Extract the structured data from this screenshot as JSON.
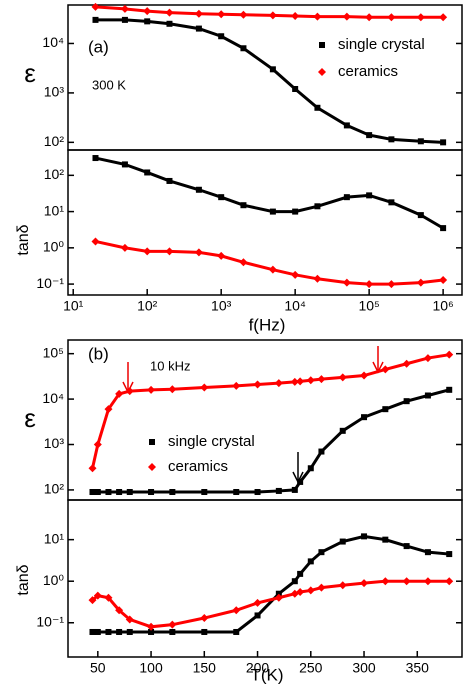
{
  "chart_data": [
    {
      "type": "line",
      "ylabel": "ε",
      "xscale": "log",
      "yscale": "log",
      "xlim": [
        8.5,
        1800000
      ],
      "ylim": [
        70,
        60000
      ],
      "yticks": [
        {
          "value": 100,
          "label": "10²"
        },
        {
          "value": 1000,
          "label": "10³"
        },
        {
          "value": 10000,
          "label": "10⁴"
        }
      ],
      "annotations": [
        "(a)",
        "300 K"
      ],
      "x": [
        20,
        50,
        100,
        200,
        500,
        1000,
        2000,
        5000,
        10000,
        20000,
        50000,
        100000,
        200000,
        500000,
        1000000
      ],
      "series": [
        {
          "name": "single crystal",
          "color": "#000000",
          "marker": "square",
          "values": [
            30000,
            30000,
            28000,
            25000,
            20000,
            14000,
            8000,
            3000,
            1200,
            500,
            220,
            140,
            115,
            105,
            100
          ]
        },
        {
          "name": "ceramics",
          "color": "#ff0000",
          "marker": "diamond",
          "values": [
            55000,
            50000,
            45000,
            42000,
            40000,
            39000,
            38000,
            37000,
            36000,
            35000,
            35000,
            34000,
            34000,
            34000,
            34000
          ]
        }
      ]
    },
    {
      "type": "line",
      "ylabel": "tanδ",
      "xlabel": "f(Hz)",
      "xscale": "log",
      "yscale": "log",
      "xlim": [
        8.5,
        1800000
      ],
      "ylim": [
        0.05,
        500
      ],
      "xticks": [
        {
          "value": 10,
          "label": "10¹"
        },
        {
          "value": 100,
          "label": "10²"
        },
        {
          "value": 1000,
          "label": "10³"
        },
        {
          "value": 10000,
          "label": "10⁴"
        },
        {
          "value": 100000,
          "label": "10⁵"
        },
        {
          "value": 1000000,
          "label": "10⁶"
        }
      ],
      "yticks": [
        {
          "value": 0.1,
          "label": "10⁻¹"
        },
        {
          "value": 1,
          "label": "10⁰"
        },
        {
          "value": 10,
          "label": "10¹"
        },
        {
          "value": 100,
          "label": "10²"
        }
      ],
      "x": [
        20,
        50,
        100,
        200,
        500,
        1000,
        2000,
        5000,
        10000,
        20000,
        50000,
        100000,
        200000,
        500000,
        1000000
      ],
      "series": [
        {
          "color": "#000000",
          "marker": "square",
          "values": [
            300,
            200,
            120,
            70,
            40,
            25,
            15,
            10,
            10,
            14,
            25,
            28,
            18,
            8,
            3.5
          ]
        },
        {
          "color": "#ff0000",
          "marker": "diamond",
          "values": [
            1.5,
            1.0,
            0.8,
            0.8,
            0.75,
            0.6,
            0.4,
            0.25,
            0.18,
            0.14,
            0.11,
            0.1,
            0.1,
            0.11,
            0.13
          ]
        }
      ]
    },
    {
      "type": "line",
      "ylabel": "ε",
      "xscale": "linear",
      "yscale": "log",
      "xlim": [
        22,
        392
      ],
      "ylim": [
        60,
        200000
      ],
      "yticks": [
        {
          "value": 100,
          "label": "10²"
        },
        {
          "value": 1000,
          "label": "10³"
        },
        {
          "value": 10000,
          "label": "10⁴"
        },
        {
          "value": 100000,
          "label": "10⁵"
        }
      ],
      "annotations": [
        "(b)",
        "10 kHz"
      ],
      "x": [
        45,
        50,
        60,
        70,
        80,
        100,
        120,
        150,
        180,
        200,
        220,
        235,
        240,
        250,
        260,
        280,
        300,
        320,
        340,
        360,
        380
      ],
      "series": [
        {
          "name": "single crystal",
          "color": "#000000",
          "marker": "square",
          "values": [
            90,
            90,
            90,
            90,
            90,
            90,
            90,
            90,
            90,
            90,
            95,
            100,
            150,
            300,
            700,
            2000,
            4000,
            6000,
            9000,
            12000,
            16000
          ]
        },
        {
          "name": "ceramics",
          "color": "#ff0000",
          "marker": "diamond",
          "values": [
            300,
            1000,
            6000,
            13000,
            15000,
            16000,
            16500,
            18000,
            19500,
            21000,
            22500,
            24000,
            24500,
            26000,
            27500,
            30000,
            33000,
            45000,
            60000,
            80000,
            95000
          ]
        }
      ]
    },
    {
      "type": "line",
      "ylabel": "tanδ",
      "xlabel": "T(K)",
      "xscale": "linear",
      "yscale": "log",
      "xlim": [
        22,
        392
      ],
      "ylim": [
        0.015,
        90
      ],
      "xticks": [
        50,
        100,
        150,
        200,
        250,
        300,
        350
      ],
      "yticks": [
        {
          "value": 0.1,
          "label": "10⁻¹"
        },
        {
          "value": 1,
          "label": "10⁰"
        },
        {
          "value": 10,
          "label": "10¹"
        }
      ],
      "x": [
        45,
        50,
        60,
        70,
        80,
        100,
        120,
        150,
        180,
        200,
        220,
        235,
        240,
        250,
        260,
        280,
        300,
        320,
        340,
        360,
        380
      ],
      "series": [
        {
          "color": "#000000",
          "marker": "square",
          "values": [
            0.06,
            0.06,
            0.06,
            0.06,
            0.06,
            0.06,
            0.06,
            0.06,
            0.06,
            0.15,
            0.5,
            1.0,
            1.5,
            3,
            5,
            9,
            12,
            10,
            7,
            5,
            4.5
          ]
        },
        {
          "color": "#ff0000",
          "marker": "diamond",
          "values": [
            0.35,
            0.45,
            0.4,
            0.2,
            0.12,
            0.08,
            0.09,
            0.13,
            0.2,
            0.3,
            0.4,
            0.5,
            0.55,
            0.6,
            0.7,
            0.8,
            0.9,
            1.0,
            1.0,
            1.0,
            1.0
          ]
        }
      ]
    }
  ]
}
